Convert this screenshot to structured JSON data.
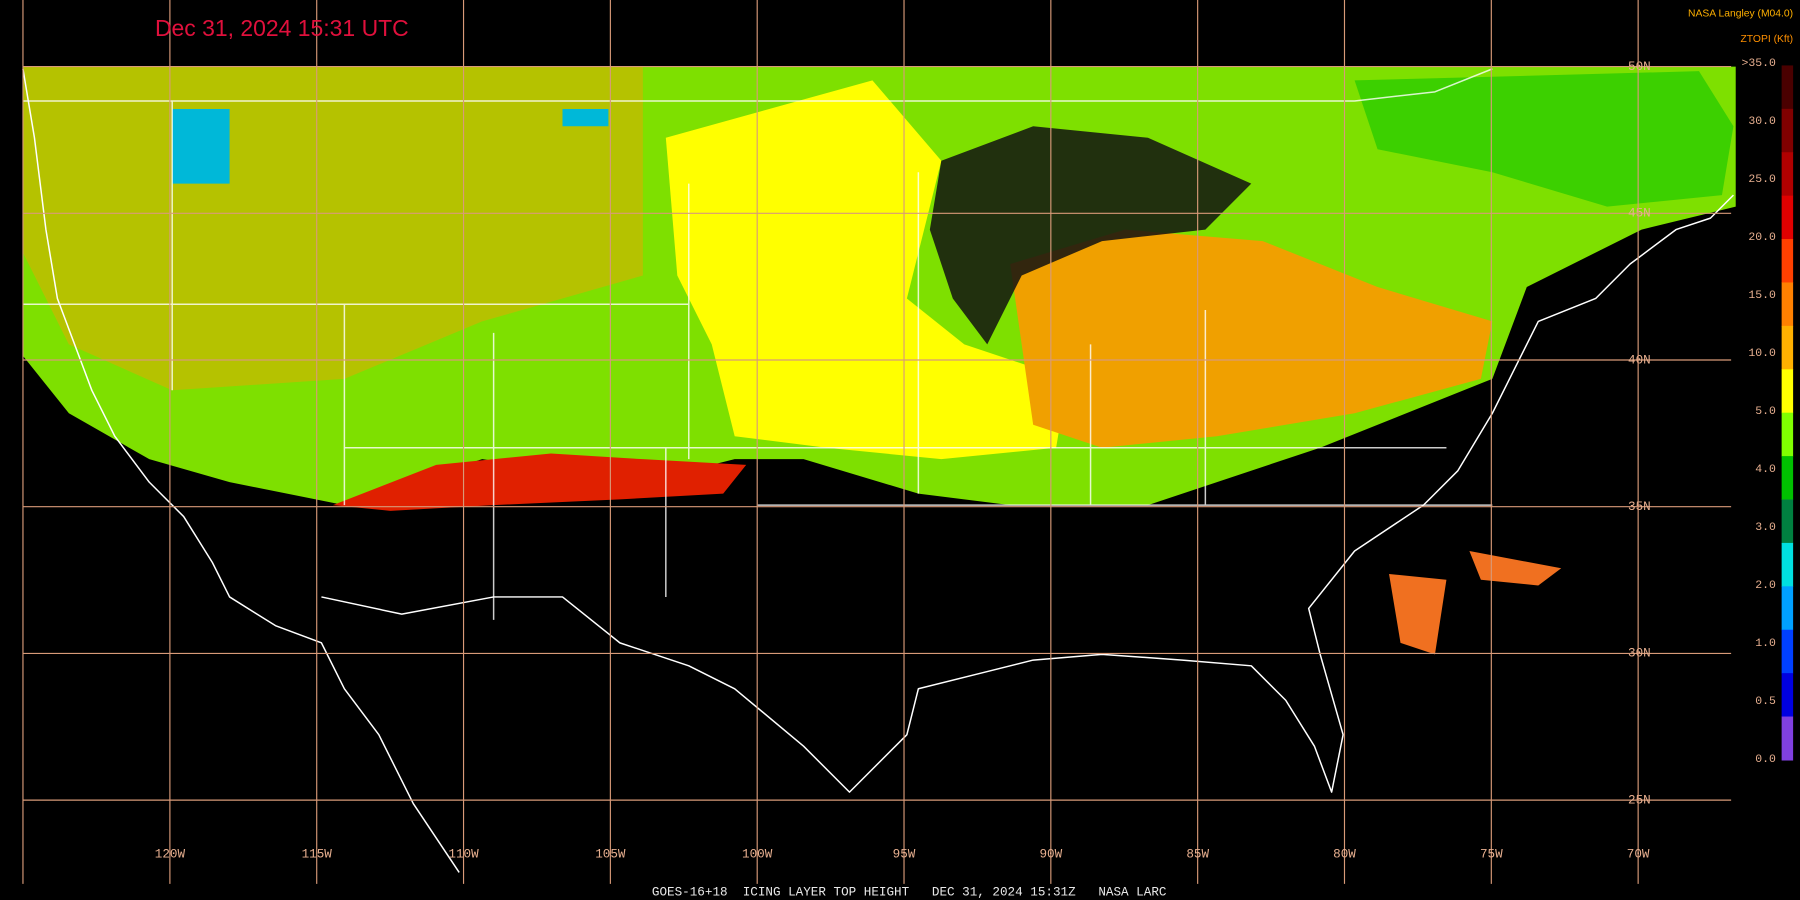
{
  "header": {
    "timestamp": "Dec 31, 2024 15:31 UTC",
    "source": "NASA Langley (M04.0)"
  },
  "legend": {
    "title": "ZTOPI (Kft)",
    "labels": [
      ">35.0",
      "30.0",
      "25.0",
      "20.0",
      "15.0",
      "10.0",
      "5.0",
      "4.0",
      "3.0",
      "2.0",
      "1.0",
      "0.5",
      "0.0"
    ]
  },
  "grid": {
    "latitudes": [
      "50N",
      "45N",
      "40N",
      "35N",
      "30N",
      "25N"
    ],
    "longitudes": [
      "120W",
      "115W",
      "110W",
      "105W",
      "100W",
      "95W",
      "90W",
      "85W",
      "80W",
      "75W",
      "70W"
    ]
  },
  "footer": {
    "caption": "GOES-16+18  ICING LAYER TOP HEIGHT   DEC 31, 2024 15:31Z   NASA LARC"
  }
}
